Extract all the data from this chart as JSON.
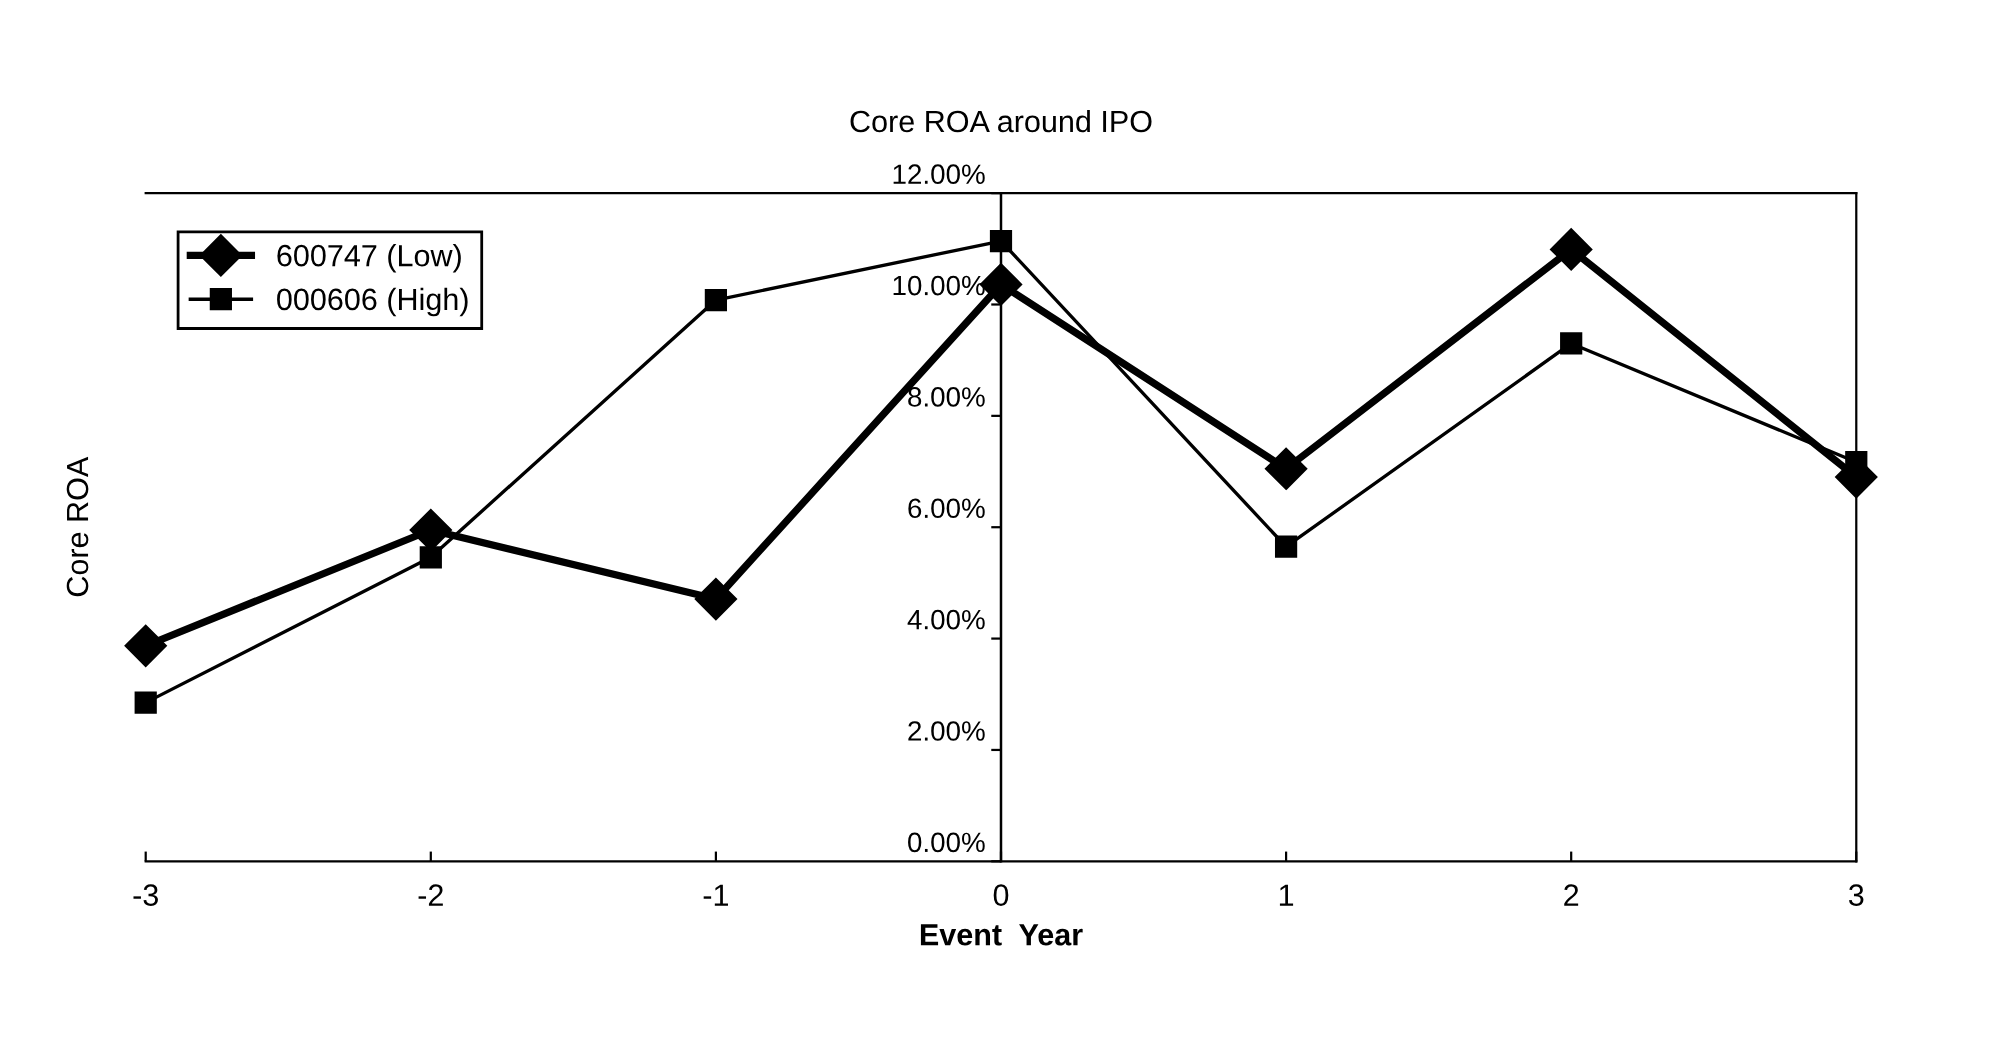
{
  "chart_data": {
    "type": "line",
    "title": "Core ROA around IPO",
    "xlabel": "Event  Year",
    "ylabel": "Core ROA",
    "x": [
      -3,
      -2,
      -1,
      0,
      1,
      2,
      3
    ],
    "series": [
      {
        "name": "600747 (Low)",
        "color": "#000000",
        "marker": "diamond",
        "values": [
          3.87,
          5.95,
          4.71,
          10.36,
          7.05,
          10.99,
          6.9
        ]
      },
      {
        "name": "000606 (High)",
        "color": "#000000",
        "marker": "square",
        "values": [
          2.85,
          5.46,
          10.08,
          11.14,
          5.65,
          9.3,
          7.17
        ]
      }
    ],
    "xlim": [
      -3,
      3
    ],
    "xticks": [
      -3,
      -2,
      -1,
      0,
      1,
      2,
      3
    ],
    "ylim": [
      0,
      12
    ],
    "yticks": [
      {
        "value": 0,
        "label": "0.00%"
      },
      {
        "value": 2,
        "label": "2.00%"
      },
      {
        "value": 4,
        "label": "4.00%"
      },
      {
        "value": 6,
        "label": "6.00%"
      },
      {
        "value": 8,
        "label": "8.00%"
      },
      {
        "value": 10,
        "label": "10.00%"
      },
      {
        "value": 12,
        "label": "12.00%"
      }
    ],
    "grid": false,
    "legend": "top left",
    "line_style": "solid"
  }
}
